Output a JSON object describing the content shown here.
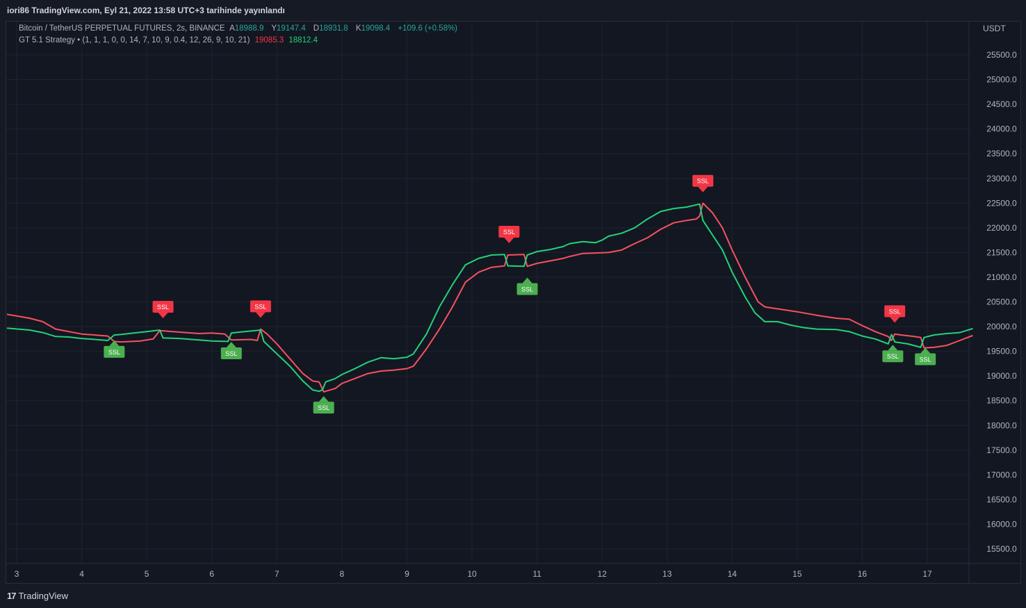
{
  "header": {
    "published": "iori86 TradingView.com, Eyl 21, 2022 13:58 UTC+3 tarihinde yayınlandı"
  },
  "legend": {
    "symbol": "Bitcoin / TetherUS PERPETUAL FUTURES, 2s, BINANCE",
    "o_label": "A",
    "o_val": "18988.9",
    "h_label": "Y",
    "h_val": "19147.4",
    "l_label": "D",
    "l_val": "18931.8",
    "c_label": "K",
    "c_val": "19098.4",
    "change": "+109.6 (+0.58%)",
    "indicator": "GT 5.1 Strategy • (1, 1, 1, 0, 0, 14, 7, 10, 9, 0.4, 12, 26, 9, 10, 21)",
    "ind_val1": "19085.3",
    "ind_val2": "18812.4"
  },
  "footer": {
    "brand_logo": "17",
    "brand": "TradingView"
  },
  "chart_data": {
    "type": "line",
    "title": "Bitcoin / TetherUS PERPETUAL FUTURES, 2s, BINANCE",
    "currency": "USDT",
    "ylim": [
      15100,
      26000
    ],
    "xlim": [
      2.85,
      17.7
    ],
    "y_ticks": [
      "25500.0",
      "25000.0",
      "24500.0",
      "24000.0",
      "23500.0",
      "23000.0",
      "22500.0",
      "22000.0",
      "21500.0",
      "21000.0",
      "20500.0",
      "20000.0",
      "19500.0",
      "19000.0",
      "18500.0",
      "18000.0",
      "17500.0",
      "17000.0",
      "16500.0",
      "16000.0",
      "15500.0"
    ],
    "x_ticks": [
      {
        "v": 3,
        "label": "3"
      },
      {
        "v": 4,
        "label": "4"
      },
      {
        "v": 5,
        "label": "5"
      },
      {
        "v": 6,
        "label": "6"
      },
      {
        "v": 7,
        "label": "7"
      },
      {
        "v": 8,
        "label": "8"
      },
      {
        "v": 9,
        "label": "9"
      },
      {
        "v": 10,
        "label": "10"
      },
      {
        "v": 11,
        "label": "11"
      },
      {
        "v": 12,
        "label": "12"
      },
      {
        "v": 13,
        "label": "13"
      },
      {
        "v": 14,
        "label": "14"
      },
      {
        "v": 15,
        "label": "15"
      },
      {
        "v": 16,
        "label": "16"
      },
      {
        "v": 17,
        "label": "17"
      }
    ],
    "colors": {
      "red": "#f7525f",
      "green": "#22d37a",
      "buy": "#4caf50",
      "sell": "#f23645"
    },
    "series": [
      {
        "name": "SSL Up (red)",
        "color": "#f7525f",
        "points": [
          [
            2.85,
            20250
          ],
          [
            3.2,
            20170
          ],
          [
            3.4,
            20100
          ],
          [
            3.6,
            19950
          ],
          [
            3.8,
            19900
          ],
          [
            4.0,
            19850
          ],
          [
            4.2,
            19830
          ],
          [
            4.4,
            19810
          ],
          [
            4.5,
            19700
          ],
          [
            4.6,
            19690
          ],
          [
            4.9,
            19710
          ],
          [
            5.1,
            19750
          ],
          [
            5.2,
            19920
          ],
          [
            5.4,
            19900
          ],
          [
            5.6,
            19880
          ],
          [
            5.8,
            19860
          ],
          [
            6.0,
            19870
          ],
          [
            6.2,
            19850
          ],
          [
            6.3,
            19730
          ],
          [
            6.6,
            19740
          ],
          [
            6.7,
            19720
          ],
          [
            6.75,
            19950
          ],
          [
            6.85,
            19850
          ],
          [
            7.0,
            19650
          ],
          [
            7.2,
            19350
          ],
          [
            7.4,
            19050
          ],
          [
            7.55,
            18900
          ],
          [
            7.65,
            18880
          ],
          [
            7.72,
            18680
          ],
          [
            7.9,
            18750
          ],
          [
            8.0,
            18850
          ],
          [
            8.2,
            18950
          ],
          [
            8.4,
            19050
          ],
          [
            8.6,
            19100
          ],
          [
            8.8,
            19120
          ],
          [
            9.0,
            19150
          ],
          [
            9.1,
            19200
          ],
          [
            9.3,
            19550
          ],
          [
            9.5,
            19950
          ],
          [
            9.7,
            20400
          ],
          [
            9.9,
            20900
          ],
          [
            10.1,
            21100
          ],
          [
            10.3,
            21200
          ],
          [
            10.5,
            21230
          ],
          [
            10.55,
            21450
          ],
          [
            10.8,
            21460
          ],
          [
            10.85,
            21220
          ],
          [
            11.0,
            21280
          ],
          [
            11.2,
            21330
          ],
          [
            11.4,
            21380
          ],
          [
            11.5,
            21420
          ],
          [
            11.7,
            21480
          ],
          [
            11.9,
            21490
          ],
          [
            12.1,
            21500
          ],
          [
            12.3,
            21550
          ],
          [
            12.5,
            21680
          ],
          [
            12.7,
            21800
          ],
          [
            12.9,
            21970
          ],
          [
            13.1,
            22100
          ],
          [
            13.3,
            22150
          ],
          [
            13.45,
            22180
          ],
          [
            13.5,
            22240
          ],
          [
            13.55,
            22500
          ],
          [
            13.7,
            22300
          ],
          [
            13.85,
            22000
          ],
          [
            14.0,
            21550
          ],
          [
            14.2,
            21000
          ],
          [
            14.4,
            20500
          ],
          [
            14.5,
            20400
          ],
          [
            14.7,
            20360
          ],
          [
            15.0,
            20300
          ],
          [
            15.3,
            20230
          ],
          [
            15.6,
            20170
          ],
          [
            15.8,
            20150
          ],
          [
            16.0,
            20020
          ],
          [
            16.2,
            19900
          ],
          [
            16.4,
            19800
          ],
          [
            16.45,
            19720
          ],
          [
            16.5,
            19850
          ],
          [
            16.6,
            19830
          ],
          [
            16.8,
            19800
          ],
          [
            16.9,
            19780
          ],
          [
            16.95,
            19570
          ],
          [
            17.1,
            19580
          ],
          [
            17.3,
            19620
          ],
          [
            17.5,
            19720
          ],
          [
            17.7,
            19820
          ]
        ]
      },
      {
        "name": "SSL Down (green)",
        "color": "#22d37a",
        "points": [
          [
            2.85,
            19970
          ],
          [
            3.2,
            19930
          ],
          [
            3.4,
            19880
          ],
          [
            3.6,
            19800
          ],
          [
            3.8,
            19790
          ],
          [
            4.0,
            19760
          ],
          [
            4.2,
            19740
          ],
          [
            4.4,
            19720
          ],
          [
            4.5,
            19830
          ],
          [
            4.6,
            19840
          ],
          [
            4.8,
            19870
          ],
          [
            5.0,
            19900
          ],
          [
            5.2,
            19930
          ],
          [
            5.25,
            19770
          ],
          [
            5.5,
            19760
          ],
          [
            5.8,
            19730
          ],
          [
            6.0,
            19710
          ],
          [
            6.25,
            19700
          ],
          [
            6.3,
            19870
          ],
          [
            6.5,
            19900
          ],
          [
            6.75,
            19930
          ],
          [
            6.8,
            19700
          ],
          [
            7.0,
            19450
          ],
          [
            7.2,
            19200
          ],
          [
            7.4,
            18900
          ],
          [
            7.55,
            18720
          ],
          [
            7.65,
            18690
          ],
          [
            7.7,
            18720
          ],
          [
            7.75,
            18880
          ],
          [
            7.9,
            18950
          ],
          [
            8.0,
            19030
          ],
          [
            8.2,
            19150
          ],
          [
            8.4,
            19280
          ],
          [
            8.6,
            19370
          ],
          [
            8.8,
            19350
          ],
          [
            9.0,
            19380
          ],
          [
            9.1,
            19450
          ],
          [
            9.3,
            19850
          ],
          [
            9.5,
            20400
          ],
          [
            9.7,
            20850
          ],
          [
            9.9,
            21250
          ],
          [
            10.1,
            21380
          ],
          [
            10.3,
            21450
          ],
          [
            10.5,
            21460
          ],
          [
            10.55,
            21230
          ],
          [
            10.8,
            21220
          ],
          [
            10.85,
            21450
          ],
          [
            11.0,
            21520
          ],
          [
            11.2,
            21560
          ],
          [
            11.4,
            21620
          ],
          [
            11.5,
            21680
          ],
          [
            11.7,
            21720
          ],
          [
            11.9,
            21700
          ],
          [
            12.0,
            21750
          ],
          [
            12.1,
            21830
          ],
          [
            12.3,
            21890
          ],
          [
            12.5,
            22000
          ],
          [
            12.7,
            22180
          ],
          [
            12.9,
            22330
          ],
          [
            13.1,
            22390
          ],
          [
            13.3,
            22420
          ],
          [
            13.5,
            22480
          ],
          [
            13.55,
            22150
          ],
          [
            13.7,
            21850
          ],
          [
            13.85,
            21550
          ],
          [
            14.0,
            21100
          ],
          [
            14.2,
            20600
          ],
          [
            14.35,
            20280
          ],
          [
            14.5,
            20100
          ],
          [
            14.7,
            20100
          ],
          [
            14.9,
            20030
          ],
          [
            15.1,
            19980
          ],
          [
            15.3,
            19950
          ],
          [
            15.6,
            19940
          ],
          [
            15.8,
            19900
          ],
          [
            16.0,
            19810
          ],
          [
            16.2,
            19750
          ],
          [
            16.4,
            19650
          ],
          [
            16.45,
            19840
          ],
          [
            16.5,
            19690
          ],
          [
            16.7,
            19650
          ],
          [
            16.9,
            19580
          ],
          [
            16.95,
            19780
          ],
          [
            17.1,
            19830
          ],
          [
            17.3,
            19860
          ],
          [
            17.5,
            19880
          ],
          [
            17.7,
            19960
          ]
        ]
      }
    ],
    "signals": [
      {
        "type": "buy",
        "x": 4.5,
        "y": 19750,
        "label": "SSL"
      },
      {
        "type": "sell",
        "x": 5.25,
        "y": 19930,
        "label": "SSL"
      },
      {
        "type": "buy",
        "x": 6.3,
        "y": 19720,
        "label": "SSL"
      },
      {
        "type": "sell",
        "x": 6.75,
        "y": 19940,
        "label": "SSL"
      },
      {
        "type": "buy",
        "x": 7.72,
        "y": 18620,
        "label": "SSL"
      },
      {
        "type": "sell",
        "x": 10.57,
        "y": 21450,
        "label": "SSL"
      },
      {
        "type": "buy",
        "x": 10.85,
        "y": 21020,
        "label": "SSL"
      },
      {
        "type": "sell",
        "x": 13.55,
        "y": 22480,
        "label": "SSL"
      },
      {
        "type": "sell",
        "x": 16.5,
        "y": 19840,
        "label": "SSL"
      },
      {
        "type": "buy",
        "x": 16.47,
        "y": 19660,
        "label": "SSL"
      },
      {
        "type": "buy",
        "x": 16.97,
        "y": 19600,
        "label": "SSL"
      }
    ]
  }
}
